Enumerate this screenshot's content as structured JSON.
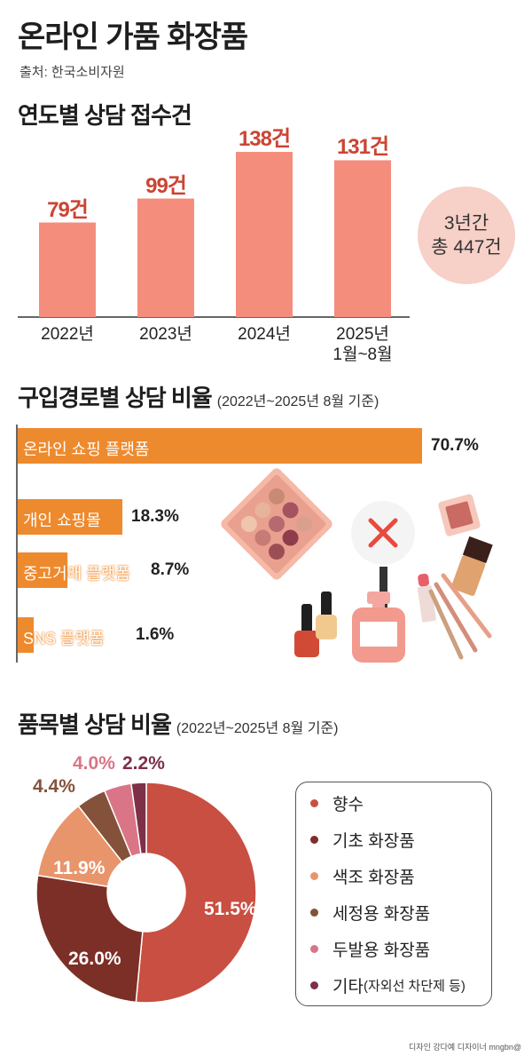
{
  "header": {
    "title": "온라인 가품 화장품",
    "source": "출처: 한국소비자원"
  },
  "sections": {
    "yearly": {
      "title": "연도별 상담 접수건"
    },
    "channel": {
      "title": "구입경로별 상담 비율",
      "note": "(2022년~2025년 8월 기준)"
    },
    "category": {
      "title": "품목별 상담 비율",
      "note": "(2022년~2025년 8월 기준)"
    }
  },
  "total_badge": {
    "line1": "3년간",
    "line2": "총 447건"
  },
  "credit": "디자인 강다예 디자이너 mngbn@",
  "colors": {
    "bar": "#f58d7c",
    "bar_value": "#cc4433",
    "hbar": "#ee8a2e",
    "badge": "#f7d0c8"
  },
  "chart_data": [
    {
      "type": "bar",
      "categories": [
        "2022년",
        "2023년",
        "2024년",
        "2025년\n1월~8월"
      ],
      "values": [
        79,
        99,
        138,
        131
      ],
      "value_labels": [
        "79건",
        "99건",
        "138건",
        "131건"
      ],
      "ylim": [
        0,
        138
      ]
    },
    {
      "type": "bar",
      "orientation": "horizontal",
      "categories": [
        "온라인 쇼핑 플랫폼",
        "개인 쇼핑몰",
        "중고거래 플랫폼",
        "SNS 플랫폼"
      ],
      "values": [
        70.7,
        18.3,
        8.7,
        1.6
      ],
      "value_labels": [
        "70.7%",
        "18.3%",
        "8.7%",
        "1.6%"
      ],
      "xlim": [
        0,
        70.7
      ]
    },
    {
      "type": "pie",
      "donut": true,
      "slices": [
        {
          "name": "향수",
          "value": 51.5,
          "label": "51.5%",
          "color": "#c84f41"
        },
        {
          "name": "기초 화장품",
          "value": 26.0,
          "label": "26.0%",
          "color": "#7c2f27"
        },
        {
          "name": "색조 화장품",
          "value": 11.9,
          "label": "11.9%",
          "color": "#e8956c"
        },
        {
          "name": "세정용 화장품",
          "value": 4.4,
          "label": "4.4%",
          "color": "#84523a"
        },
        {
          "name": "두발용 화장품",
          "value": 4.0,
          "label": "4.0%",
          "color": "#d97587"
        },
        {
          "name": "기타",
          "value": 2.2,
          "label": "2.2%",
          "color": "#7e3048",
          "note": "(자외선 차단제 등)"
        }
      ]
    }
  ]
}
